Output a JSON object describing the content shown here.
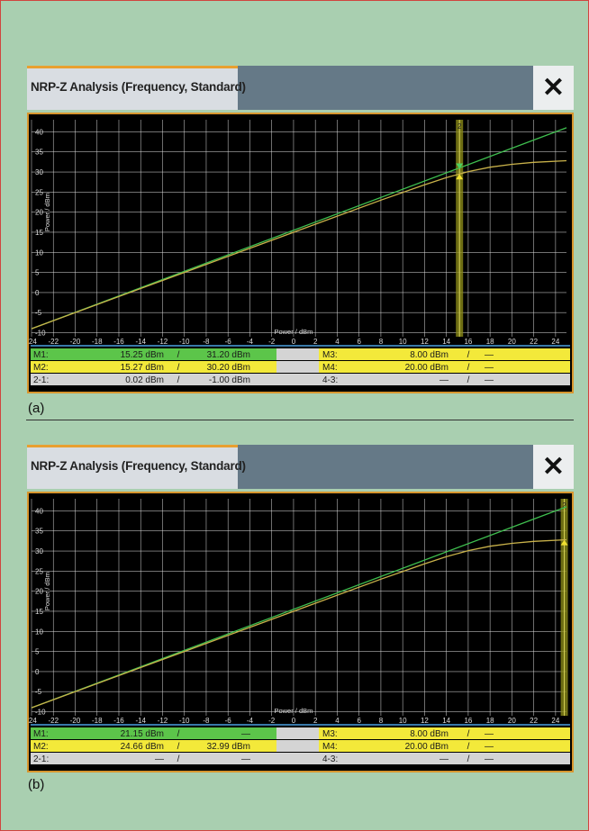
{
  "panels": [
    {
      "caption": "(a)",
      "title": "NRP-Z Analysis (Frequency, Standard)",
      "close_icon": "close-icon",
      "plot": {
        "x_axis_label": "Power / dBm",
        "y_axis_label": "Power / dBm",
        "x_ticks": [
          "-24",
          "-22",
          "-20",
          "-18",
          "-16",
          "-14",
          "-12",
          "-10",
          "-8",
          "-6",
          "-4",
          "-2",
          "0",
          "2",
          "4",
          "6",
          "8",
          "10",
          "12",
          "14",
          "16",
          "18",
          "20",
          "22",
          "24"
        ],
        "y_ticks": [
          "40",
          "35",
          "30",
          "25",
          "20",
          "15",
          "10",
          "5",
          "0",
          "-5",
          "-10"
        ],
        "marker_x": 15.2,
        "marker_tag": "2",
        "marker_arrows": "both"
      },
      "markers": {
        "m1": {
          "label": "M1:",
          "v1": "15.25 dBm",
          "sep": "/",
          "v2": "31.20 dBm"
        },
        "m2": {
          "label": "M2:",
          "v1": "15.27 dBm",
          "sep": "/",
          "v2": "30.20 dBm"
        },
        "d21": {
          "label": "2-1:",
          "v1": "0.02 dBm",
          "sep": "/",
          "v2": "-1.00 dBm"
        },
        "m3": {
          "label": "M3:",
          "v1": "8.00 dBm",
          "sep": "/",
          "v2": "—"
        },
        "m4": {
          "label": "M4:",
          "v1": "20.00 dBm",
          "sep": "/",
          "v2": "—"
        },
        "d43": {
          "label": "4-3:",
          "v1": "—",
          "sep": "/",
          "v2": "—"
        }
      }
    },
    {
      "caption": "(b)",
      "title": "NRP-Z Analysis (Frequency, Standard)",
      "close_icon": "close-icon",
      "plot": {
        "x_axis_label": "Power / dBm",
        "y_axis_label": "Power / dBm",
        "x_ticks": [
          "-24",
          "-22",
          "-20",
          "-18",
          "-16",
          "-14",
          "-12",
          "-10",
          "-8",
          "-6",
          "-4",
          "-2",
          "0",
          "2",
          "4",
          "6",
          "8",
          "10",
          "12",
          "14",
          "16",
          "18",
          "20",
          "22",
          "24"
        ],
        "y_ticks": [
          "40",
          "35",
          "30",
          "25",
          "20",
          "15",
          "10",
          "5",
          "0",
          "-5",
          "-10"
        ],
        "marker_x": 24.8,
        "marker_tag": "2",
        "marker_arrows": "up"
      },
      "markers": {
        "m1": {
          "label": "M1:",
          "v1": "21.15 dBm",
          "sep": "/",
          "v2": "—"
        },
        "m2": {
          "label": "M2:",
          "v1": "24.66 dBm",
          "sep": "/",
          "v2": "32.99 dBm"
        },
        "d21": {
          "label": "2-1:",
          "v1": "—",
          "sep": "/",
          "v2": "—"
        },
        "m3": {
          "label": "M3:",
          "v1": "8.00 dBm",
          "sep": "/",
          "v2": "—"
        },
        "m4": {
          "label": "M4:",
          "v1": "20.00 dBm",
          "sep": "/",
          "v2": "—"
        },
        "d43": {
          "label": "4-3:",
          "v1": "—",
          "sep": "/",
          "v2": "—"
        }
      }
    }
  ],
  "chart_data": [
    {
      "type": "line",
      "xlabel": "Power / dBm",
      "ylabel": "Power / dBm",
      "xlim": [
        -24,
        25
      ],
      "ylim": [
        -11,
        43
      ],
      "grid": true,
      "series": [
        {
          "color": "#3fbf4f",
          "x": [
            -24,
            25
          ],
          "y": [
            -9,
            41
          ]
        },
        {
          "color": "#c9b24a",
          "x": [
            -24,
            -10,
            0,
            8,
            12,
            14,
            16,
            18,
            20,
            22,
            25
          ],
          "y": [
            -9,
            5,
            15,
            23,
            26.8,
            28.6,
            30.1,
            31.2,
            31.9,
            32.4,
            32.8
          ]
        }
      ]
    },
    {
      "type": "line",
      "xlabel": "Power / dBm",
      "ylabel": "Power / dBm",
      "xlim": [
        -24,
        25
      ],
      "ylim": [
        -11,
        43
      ],
      "grid": true,
      "series": [
        {
          "color": "#3fbf4f",
          "x": [
            -24,
            25
          ],
          "y": [
            -9,
            41
          ]
        },
        {
          "color": "#c9b24a",
          "x": [
            -24,
            -10,
            0,
            8,
            12,
            14,
            16,
            18,
            20,
            22,
            25
          ],
          "y": [
            -9,
            5,
            15,
            23,
            26.8,
            28.6,
            30.1,
            31.2,
            31.9,
            32.4,
            32.8
          ]
        }
      ]
    }
  ]
}
